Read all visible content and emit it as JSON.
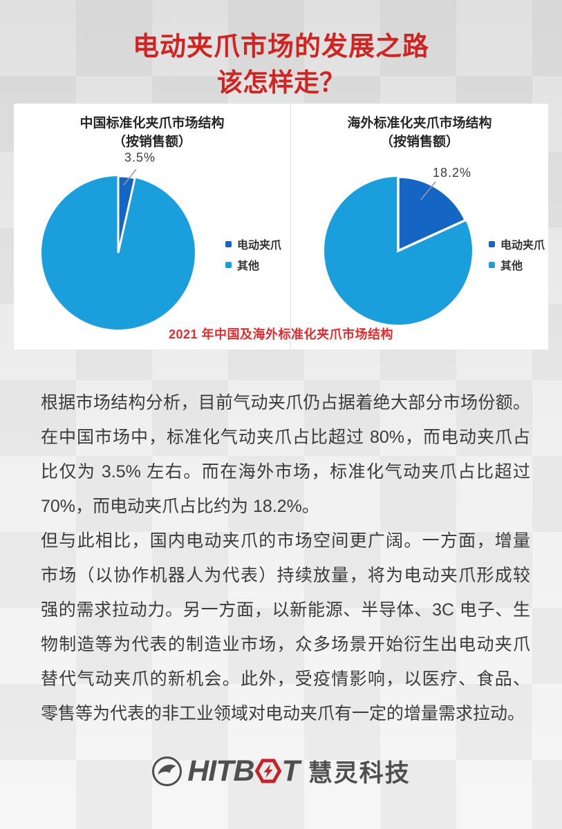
{
  "header": {
    "line1": "电动夹爪市场的发展之路",
    "line2": "该怎样走？"
  },
  "colors": {
    "title_red": "#d02423",
    "caption_red": "#e02b2e",
    "pie_light_blue": "#1b9fdc",
    "pie_dark_blue": "#1565c4",
    "leader_gray": "#9a9a9a",
    "body_text": "#3b3b3b",
    "logo_gray": "#4f4f4f",
    "logo_red": "#c4232a"
  },
  "chart_data": [
    {
      "type": "pie",
      "title": "中国标准化夹爪市场结构",
      "subtitle": "（按销售额）",
      "slices": [
        {
          "label": "电动夹爪",
          "value": 3.5,
          "color": "#1565c4"
        },
        {
          "label": "其他",
          "value": 96.5,
          "color": "#1b9fdc"
        }
      ],
      "data_label": "3.5%",
      "legend_position": "right",
      "start_angle_deg": 0
    },
    {
      "type": "pie",
      "title": "海外标准化夹爪市场结构",
      "subtitle": "（按销售额）",
      "slices": [
        {
          "label": "电动夹爪",
          "value": 18.2,
          "color": "#1565c4"
        },
        {
          "label": "其他",
          "value": 81.8,
          "color": "#1b9fdc"
        }
      ],
      "data_label": "18.2%",
      "legend_position": "right",
      "start_angle_deg": 0
    }
  ],
  "charts_caption": "2021 年中国及海外标准化夹爪市场结构",
  "body": {
    "paragraphs": [
      {
        "lines": [
          "根据市场结构分析，目前气动夹爪仍占据着绝大部分市场份额。",
          "在中国市场中，标准化气动夹爪占比超过 80%，而电动夹爪占",
          "比仅为 3.5% 左右。而在海外市场，标准化气动夹爪占比超过",
          "70%，而电动夹爪占比约为 18.2%。"
        ]
      },
      {
        "lines": [
          "但与此相比，国内电动夹爪的市场空间更广阔。一方面，增量",
          "市场（以协作机器人为代表）持续放量，将为电动夹爪形成较",
          "强的需求拉动力。另一方面，以新能源、半导体、3C 电子、生",
          "物制造等为代表的制造业市场，众多场景开始衍生出电动夹爪",
          "替代气动夹爪的新机会。此外，受疫情影响，以医疗、食品、",
          "零售等为代表的非工业领域对电动夹爪有一定的增量需求拉动。"
        ]
      }
    ]
  },
  "logo": {
    "wordmark_left": "HITB",
    "wordmark_right": "T",
    "company": "慧灵科技"
  }
}
